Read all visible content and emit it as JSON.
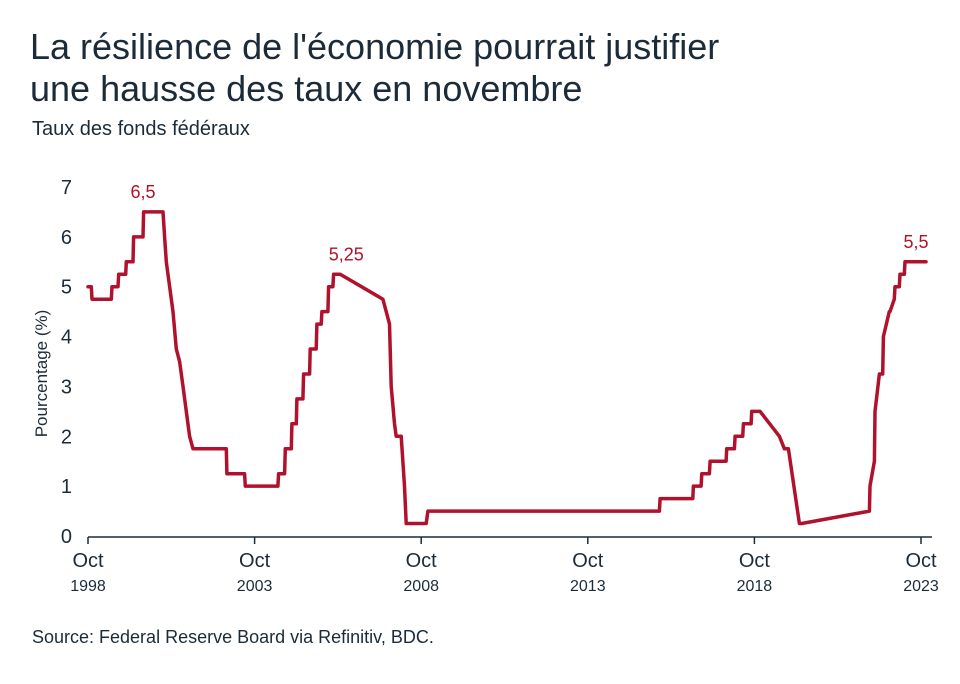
{
  "header": {
    "title_line1": "La résilience de l'économie pourrait justifier",
    "title_line2": "une hausse des taux en novembre",
    "subtitle": "Taux des fonds fédéraux"
  },
  "footer": {
    "source": "Source: Federal Reserve Board via Refinitiv, BDC."
  },
  "colors": {
    "line": "#b0122e",
    "text": "#1c2b39",
    "axis": "#1c2b39"
  },
  "chart_data": {
    "type": "line",
    "title": "Taux des fonds fédéraux",
    "ylabel": "Pourcentage (%)",
    "xlabel": "",
    "ylim": [
      0,
      7
    ],
    "xlim": [
      1998.75,
      2023.9
    ],
    "yticks": [
      0,
      1,
      2,
      3,
      4,
      5,
      6,
      7
    ],
    "xticks": [
      {
        "month": "Oct",
        "year": "1998",
        "x": 1998.75
      },
      {
        "month": "Oct",
        "year": "2003",
        "x": 2003.75
      },
      {
        "month": "Oct",
        "year": "2008",
        "x": 2008.75
      },
      {
        "month": "Oct",
        "year": "2013",
        "x": 2013.75
      },
      {
        "month": "Oct",
        "year": "2018",
        "x": 2018.75
      },
      {
        "month": "Oct",
        "year": "2023",
        "x": 2023.75
      }
    ],
    "annotations": [
      {
        "text": "6,5",
        "x": 2000.4,
        "y": 6.5
      },
      {
        "text": "5,25",
        "x": 2006.5,
        "y": 5.25
      },
      {
        "text": "5,5",
        "x": 2023.6,
        "y": 5.5
      }
    ],
    "grid": false,
    "series": [
      {
        "name": "",
        "x": [
          1998.75,
          1998.85,
          1998.87,
          1999.45,
          1999.47,
          1999.65,
          1999.67,
          1999.88,
          1999.9,
          2000.1,
          2000.12,
          2000.4,
          2000.42,
          2001.0,
          2001.05,
          2001.1,
          2001.3,
          2001.4,
          2001.5,
          2001.6,
          2001.7,
          2001.8,
          2001.9,
          2002.0,
          2002.9,
          2002.92,
          2003.45,
          2003.47,
          2004.45,
          2004.47,
          2004.65,
          2004.67,
          2004.85,
          2004.87,
          2005.0,
          2005.02,
          2005.2,
          2005.22,
          2005.4,
          2005.42,
          2005.6,
          2005.62,
          2005.75,
          2005.77,
          2005.95,
          2005.97,
          2006.1,
          2006.12,
          2006.3,
          2006.32,
          2007.6,
          2007.7,
          2007.8,
          2007.85,
          2007.95,
          2008.0,
          2008.05,
          2008.15,
          2008.25,
          2008.3,
          2008.8,
          2008.82,
          2008.9,
          2008.95,
          2015.9,
          2015.92,
          2016.9,
          2016.92,
          2017.15,
          2017.17,
          2017.4,
          2017.42,
          2017.9,
          2017.92,
          2018.15,
          2018.17,
          2018.4,
          2018.42,
          2018.65,
          2018.67,
          2018.9,
          2018.92,
          2019.5,
          2019.65,
          2019.75,
          2019.77,
          2020.1,
          2020.12,
          2020.15,
          2020.17,
          2022.2,
          2022.22,
          2022.35,
          2022.37,
          2022.5,
          2022.6,
          2022.62,
          2022.8,
          2022.82,
          2022.95,
          2022.97,
          2023.1,
          2023.12,
          2023.25,
          2023.27,
          2023.55,
          2023.57,
          2023.9
        ],
        "values": [
          5.0,
          5.0,
          4.75,
          4.75,
          5.0,
          5.0,
          5.25,
          5.25,
          5.5,
          5.5,
          6.0,
          6.0,
          6.5,
          6.5,
          6.0,
          5.5,
          4.5,
          3.75,
          3.5,
          3.0,
          2.5,
          2.0,
          1.75,
          1.75,
          1.75,
          1.25,
          1.25,
          1.0,
          1.0,
          1.25,
          1.25,
          1.75,
          1.75,
          2.25,
          2.25,
          2.75,
          2.75,
          3.25,
          3.25,
          3.75,
          3.75,
          4.25,
          4.25,
          4.5,
          4.5,
          5.0,
          5.0,
          5.25,
          5.25,
          5.25,
          4.75,
          4.5,
          4.25,
          3.0,
          2.25,
          2.0,
          2.0,
          2.0,
          1.0,
          0.25,
          0.25,
          0.25,
          0.25,
          0.5,
          0.5,
          0.75,
          0.75,
          1.0,
          1.0,
          1.25,
          1.25,
          1.5,
          1.5,
          1.75,
          1.75,
          2.0,
          2.0,
          2.25,
          2.25,
          2.5,
          2.5,
          2.5,
          2.0,
          1.75,
          1.75,
          1.75,
          0.25,
          0.25,
          0.25,
          0.25,
          0.5,
          1.0,
          1.5,
          2.5,
          3.25,
          3.25,
          4.0,
          4.5,
          4.5,
          4.75,
          5.0,
          5.0,
          5.25,
          5.25,
          5.5,
          5.5,
          5.5,
          5.5
        ]
      }
    ]
  }
}
